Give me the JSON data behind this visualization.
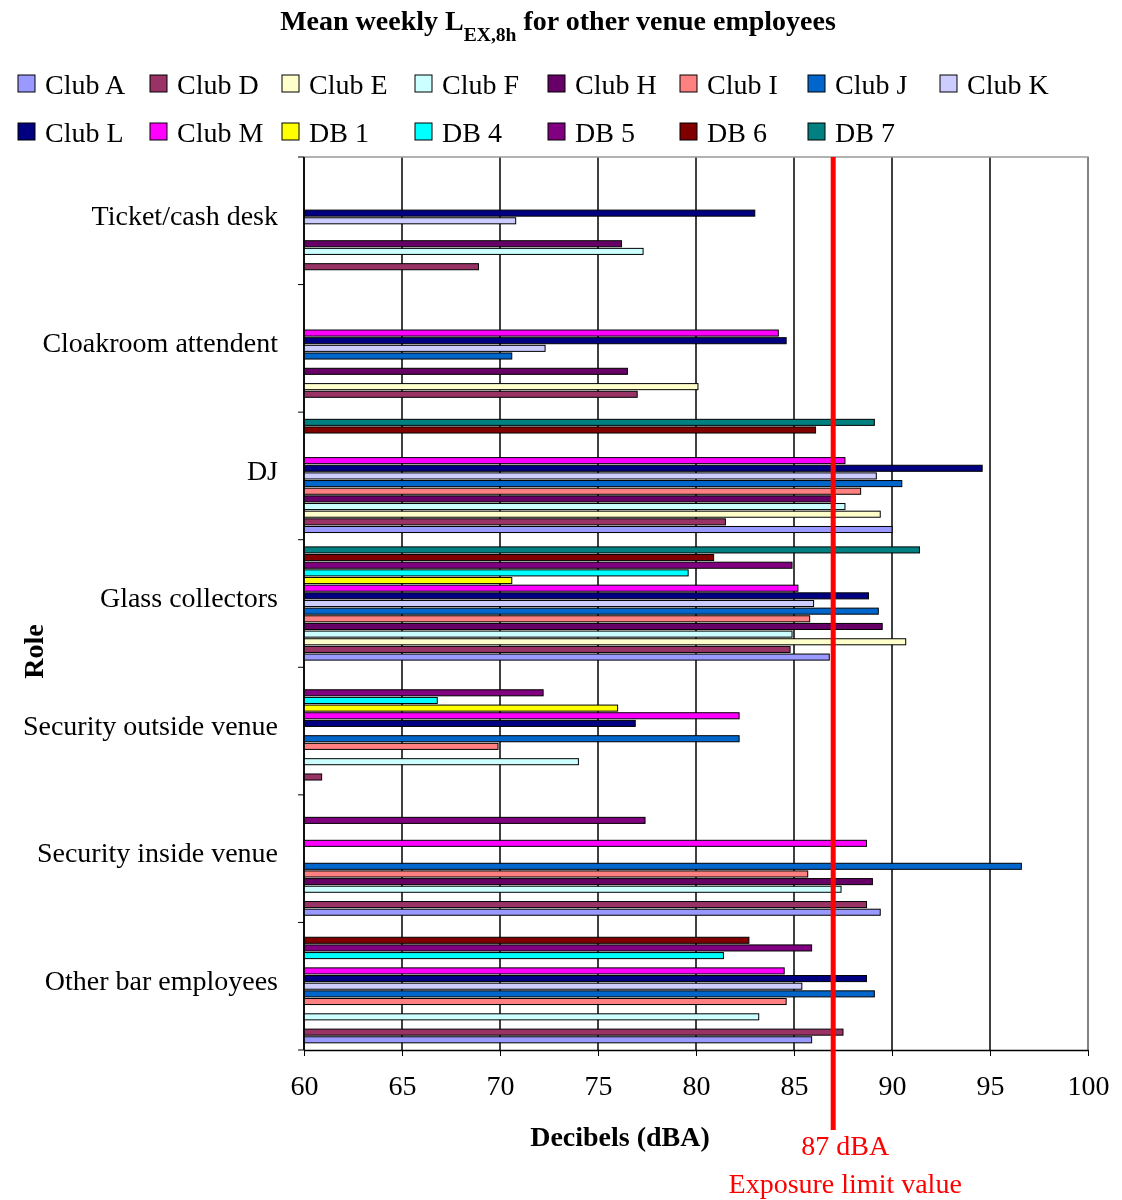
{
  "chart_data": {
    "type": "bar",
    "orientation": "horizontal",
    "title": "Mean weekly  L$_{EX,8h}$ for other venue employees",
    "xlabel": "Decibels (dBA)",
    "ylabel": "Role",
    "categories": [
      "Ticket/cash desk",
      "Cloakroom attendent",
      "DJ",
      "Glass collectors",
      "Security outside venue",
      "Security inside venue",
      "Other bar employees"
    ],
    "series": [
      {
        "name": "Club A",
        "color": "#9999ff",
        "values": [
          null,
          null,
          90.0,
          86.8,
          null,
          89.4,
          85.9
        ]
      },
      {
        "name": "Club D",
        "color": "#993366",
        "values": [
          68.9,
          77.0,
          81.5,
          84.8,
          60.9,
          88.7,
          87.5
        ]
      },
      {
        "name": "Club E",
        "color": "#ffffcc",
        "values": [
          null,
          80.1,
          89.4,
          90.7,
          null,
          null,
          null
        ]
      },
      {
        "name": "Club F",
        "color": "#ccffff",
        "values": [
          77.3,
          null,
          87.6,
          84.9,
          74.0,
          87.4,
          83.2
        ]
      },
      {
        "name": "Club H",
        "color": "#660066",
        "values": [
          76.2,
          76.5,
          87.1,
          89.5,
          null,
          89.0,
          null
        ]
      },
      {
        "name": "Club I",
        "color": "#ff8080",
        "values": [
          null,
          null,
          88.4,
          85.8,
          69.9,
          85.7,
          84.6
        ]
      },
      {
        "name": "Club J",
        "color": "#0066cc",
        "values": [
          null,
          70.6,
          90.5,
          89.3,
          82.2,
          96.6,
          89.1
        ]
      },
      {
        "name": "Club K",
        "color": "#ccccff",
        "values": [
          70.8,
          72.3,
          89.2,
          86.0,
          null,
          null,
          85.4
        ]
      },
      {
        "name": "Club L",
        "color": "#000080",
        "values": [
          83.0,
          84.6,
          94.6,
          88.8,
          76.9,
          null,
          88.7
        ]
      },
      {
        "name": "Club M",
        "color": "#ff00ff",
        "values": [
          null,
          84.2,
          87.6,
          85.2,
          82.2,
          88.7,
          84.5
        ]
      },
      {
        "name": "DB 1",
        "color": "#ffff00",
        "values": [
          null,
          null,
          null,
          70.6,
          76.0,
          null,
          null
        ]
      },
      {
        "name": "DB 4",
        "color": "#00ffff",
        "values": [
          null,
          null,
          null,
          79.6,
          66.8,
          null,
          81.4
        ]
      },
      {
        "name": "DB 5",
        "color": "#800080",
        "values": [
          null,
          null,
          null,
          84.9,
          72.2,
          77.4,
          85.9
        ]
      },
      {
        "name": "DB 6",
        "color": "#800000",
        "values": [
          null,
          null,
          86.1,
          80.9,
          null,
          null,
          82.7
        ]
      },
      {
        "name": "DB 7",
        "color": "#008080",
        "values": [
          null,
          null,
          89.1,
          91.4,
          null,
          null,
          null
        ]
      }
    ],
    "xlim": [
      60,
      100
    ],
    "xticks": [
      60,
      65,
      70,
      75,
      80,
      85,
      90,
      95,
      100
    ],
    "grid": "x",
    "legend": "top",
    "ref_lines": [
      {
        "axis": "x",
        "value": 87,
        "label": "87 dBA\nExposure limit value",
        "color": "#ff0000"
      }
    ]
  }
}
